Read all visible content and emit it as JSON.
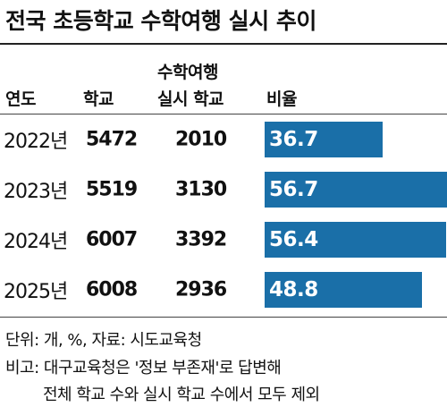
{
  "title": "전국 초등학교 수학여행 실시 추이",
  "headers": {
    "year": "연도",
    "schools": "학교",
    "trip_line1": "수학여행",
    "trip_line2": "실시 학교",
    "ratio": "비율"
  },
  "rows": [
    {
      "year": "2022년",
      "schools": "5472",
      "trip_schools": "2010",
      "ratio": "36.7"
    },
    {
      "year": "2023년",
      "schools": "5519",
      "trip_schools": "3130",
      "ratio": "56.7"
    },
    {
      "year": "2024년",
      "schools": "6007",
      "trip_schools": "3392",
      "ratio": "56.4"
    },
    {
      "year": "2025년",
      "schools": "6008",
      "trip_schools": "2936",
      "ratio": "48.8"
    }
  ],
  "notes": {
    "unit": "단위: 개, %, 자료: 시도교육청",
    "remark_line1": "비고: 대구교육청은 '정보 부존재'로 답변해",
    "remark_line2": "전체 학교 수와 실시 학교 수에서 모두 제외"
  },
  "colors": {
    "bar": "#1a6fa8",
    "bar_text": "#ffffff"
  },
  "chart_data": {
    "type": "table",
    "title": "전국 초등학교 수학여행 실시 추이",
    "columns": [
      "연도",
      "학교",
      "수학여행 실시 학교",
      "비율"
    ],
    "categories": [
      "2022년",
      "2023년",
      "2024년",
      "2025년"
    ],
    "series": [
      {
        "name": "학교",
        "values": [
          5472,
          5519,
          6007,
          6008
        ]
      },
      {
        "name": "수학여행 실시 학교",
        "values": [
          2010,
          3130,
          3392,
          2936
        ]
      },
      {
        "name": "비율",
        "values": [
          36.7,
          56.7,
          56.4,
          48.8
        ]
      }
    ],
    "grid": false
  }
}
